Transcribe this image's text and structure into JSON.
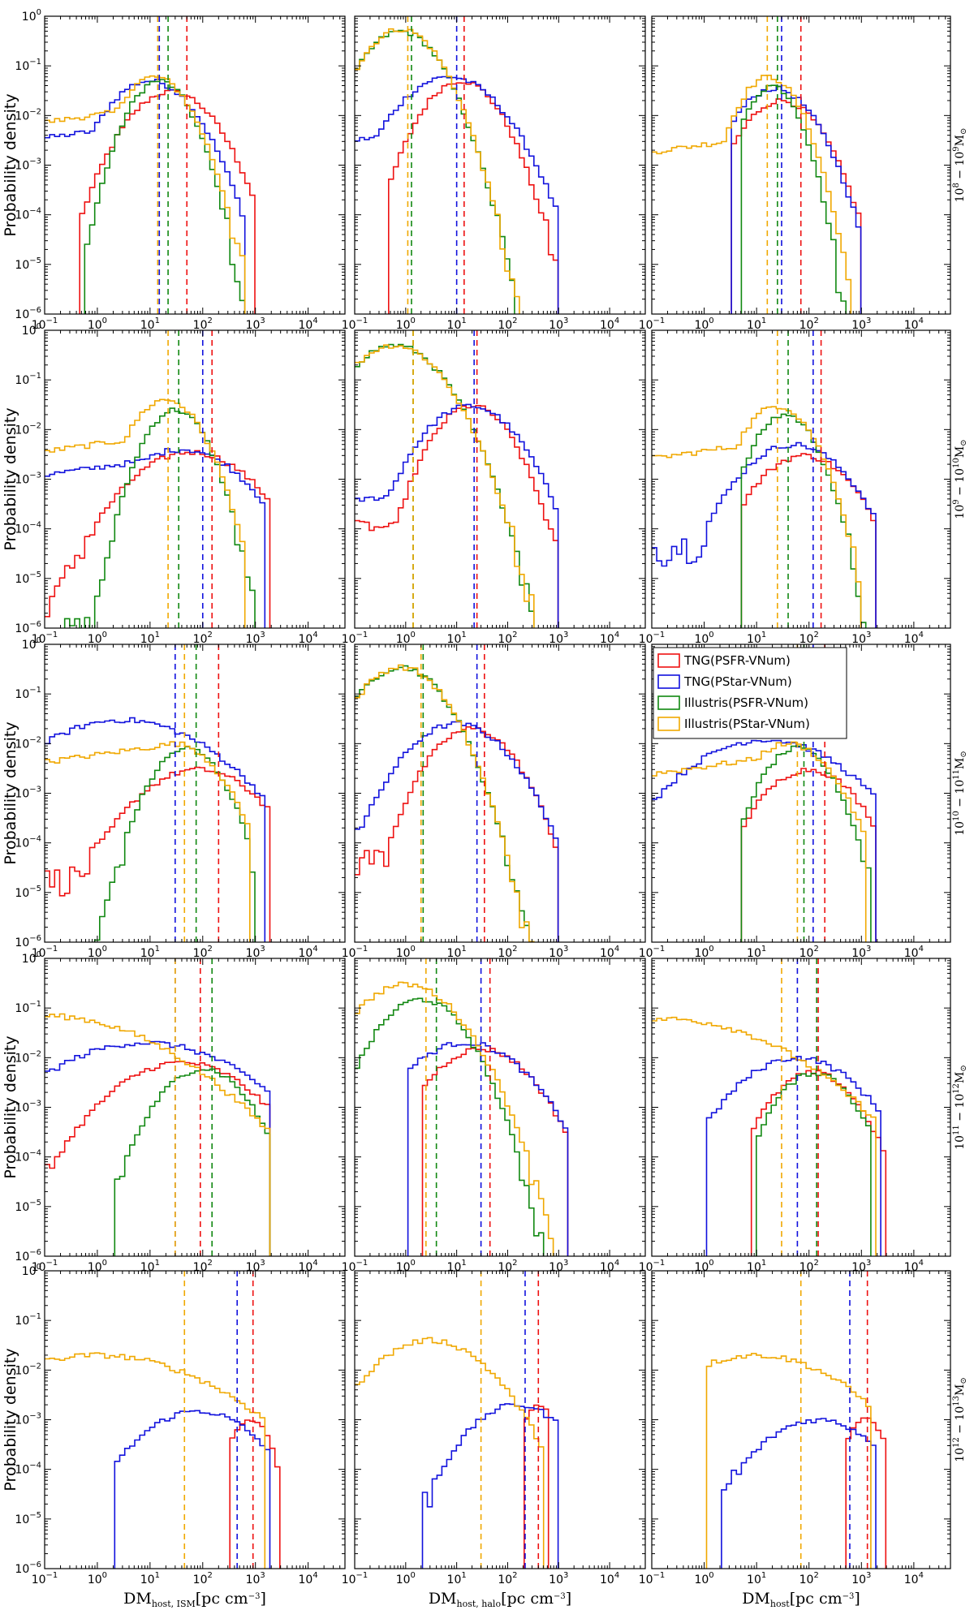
{
  "colors": {
    "TNG(PSFR-VNum)": "#ee1111",
    "TNG(PStar-VNum)": "#1111dd",
    "Illustris(PSFR-VNum)": "#118811",
    "Illustris(PStar-VNum)": "#f0a800"
  },
  "axes": {
    "ylabel": "Probability density",
    "xlabels": [
      {
        "base": "DM",
        "sub": "host, ISM",
        "unit": "[pc cm",
        "exp": "−3",
        "close": "]"
      },
      {
        "base": "DM",
        "sub": "host, halo",
        "unit": "[pc cm",
        "exp": "−3",
        "close": "]"
      },
      {
        "base": "DM",
        "sub": "host",
        "unit": "[pc cm",
        "exp": "−3",
        "close": "]"
      }
    ],
    "xticks": [
      {
        "base": "10",
        "exp": "−1"
      },
      {
        "base": "10",
        "exp": "0"
      },
      {
        "base": "10",
        "exp": "1"
      },
      {
        "base": "10",
        "exp": "2"
      },
      {
        "base": "10",
        "exp": "3"
      },
      {
        "base": "10",
        "exp": "4"
      }
    ],
    "yticks": [
      {
        "base": "10",
        "exp": "0"
      },
      {
        "base": "10",
        "exp": "−1"
      },
      {
        "base": "10",
        "exp": "−2"
      },
      {
        "base": "10",
        "exp": "−3"
      },
      {
        "base": "10",
        "exp": "−4"
      },
      {
        "base": "10",
        "exp": "−5"
      },
      {
        "base": "10",
        "exp": "−6"
      }
    ]
  },
  "rows": [
    {
      "lo": "8",
      "hi": "9",
      "msun": "M",
      "sun": "⊙"
    },
    {
      "lo": "9",
      "hi": "10",
      "msun": "M",
      "sun": "⊙"
    },
    {
      "lo": "10",
      "hi": "11",
      "msun": "M",
      "sun": "⊙"
    },
    {
      "lo": "11",
      "hi": "12",
      "msun": "M",
      "sun": "⊙"
    },
    {
      "lo": "12",
      "hi": "13",
      "msun": "M",
      "sun": "⊙"
    }
  ],
  "chart_data": {
    "type": "histogram-grid",
    "xscale": "log",
    "yscale": "log",
    "xlim": [
      0.1,
      50000
    ],
    "ylim": [
      1e-06,
      1
    ],
    "legend": {
      "entries": [
        "TNG(PSFR-VNum)",
        "TNG(PStar-VNum)",
        "Illustris(PSFR-VNum)",
        "Illustris(PStar-VNum)"
      ],
      "location": "row 3, right column, top-left"
    },
    "legend_panel": [
      2,
      2
    ],
    "panels": [
      [
        {
          "col": "ISM",
          "curves": [
            {
              "series": "TNG(PSFR-VNum)",
              "peak": 25,
              "logw": 0.5,
              "amp": 0.03,
              "lo": 0.5,
              "hi": 1000,
              "floor": 5e-06,
              "median": 50
            },
            {
              "series": "TNG(PStar-VNum)",
              "peak": 10,
              "logw": 0.5,
              "amp": 0.05,
              "lo": 0.1,
              "hi": 700,
              "floor": 0.007,
              "median": 15
            },
            {
              "series": "Illustris(PSFR-VNum)",
              "peak": 15,
              "logw": 0.35,
              "amp": 0.05,
              "lo": 0.6,
              "hi": 600,
              "floor": 5e-06,
              "median": 22
            },
            {
              "series": "Illustris(PStar-VNum)",
              "peak": 12,
              "logw": 0.4,
              "amp": 0.06,
              "lo": 0.1,
              "hi": 600,
              "floor": 0.015,
              "median": 14
            }
          ]
        },
        {
          "col": "halo",
          "curves": [
            {
              "series": "TNG(PSFR-VNum)",
              "peak": 12,
              "logw": 0.45,
              "amp": 0.05,
              "lo": 0.5,
              "hi": 1000,
              "floor": 1e-06,
              "median": 14
            },
            {
              "series": "TNG(PStar-VNum)",
              "peak": 7,
              "logw": 0.6,
              "amp": 0.06,
              "lo": 0.1,
              "hi": 1000,
              "floor": 0.006,
              "median": 10
            },
            {
              "series": "Illustris(PSFR-VNum)",
              "peak": 0.8,
              "logw": 0.45,
              "amp": 0.5,
              "lo": 0.1,
              "hi": 600,
              "floor": 1e-05,
              "median": 1.3
            },
            {
              "series": "Illustris(PStar-VNum)",
              "peak": 0.8,
              "logw": 0.45,
              "amp": 0.55,
              "lo": 0.1,
              "hi": 500,
              "floor": 1e-05,
              "median": 1.1
            }
          ]
        },
        {
          "col": "total",
          "curves": [
            {
              "series": "TNG(PSFR-VNum)",
              "peak": 30,
              "logw": 0.45,
              "amp": 0.02,
              "lo": 3,
              "hi": 1000,
              "floor": 3e-06,
              "median": 70
            },
            {
              "series": "TNG(PStar-VNum)",
              "peak": 22,
              "logw": 0.45,
              "amp": 0.035,
              "lo": 3,
              "hi": 1000,
              "floor": 3e-06,
              "median": 30
            },
            {
              "series": "Illustris(PSFR-VNum)",
              "peak": 20,
              "logw": 0.3,
              "amp": 0.04,
              "lo": 5,
              "hi": 600,
              "floor": 3e-06,
              "median": 25
            },
            {
              "series": "Illustris(PStar-VNum)",
              "peak": 17,
              "logw": 0.35,
              "amp": 0.06,
              "lo": 0.1,
              "hi": 600,
              "floor": 0.004,
              "median": 16
            }
          ]
        }
      ],
      [
        {
          "col": "ISM",
          "curves": [
            {
              "series": "TNG(PSFR-VNum)",
              "peak": 60,
              "logw": 0.7,
              "amp": 0.0035,
              "lo": 0.1,
              "hi": 2000,
              "floor": 1e-05,
              "median": 150
            },
            {
              "series": "TNG(PStar-VNum)",
              "peak": 40,
              "logw": 0.7,
              "amp": 0.004,
              "lo": 0.1,
              "hi": 1500,
              "floor": 0.003,
              "median": 100
            },
            {
              "series": "Illustris(PSFR-VNum)",
              "peak": 30,
              "logw": 0.35,
              "amp": 0.025,
              "lo": 0.2,
              "hi": 1000,
              "floor": 2e-06,
              "median": 35
            },
            {
              "series": "Illustris(PStar-VNum)",
              "peak": 20,
              "logw": 0.4,
              "amp": 0.04,
              "lo": 0.1,
              "hi": 700,
              "floor": 0.008,
              "median": 22
            }
          ]
        },
        {
          "col": "halo",
          "curves": [
            {
              "series": "TNG(PSFR-VNum)",
              "peak": 20,
              "logw": 0.45,
              "amp": 0.03,
              "lo": 0.1,
              "hi": 1000,
              "floor": 0.0002,
              "median": 25
            },
            {
              "series": "TNG(PStar-VNum)",
              "peak": 18,
              "logw": 0.55,
              "amp": 0.03,
              "lo": 0.1,
              "hi": 1000,
              "floor": 0.0008,
              "median": 22
            },
            {
              "series": "Illustris(PSFR-VNum)",
              "peak": 0.6,
              "logw": 0.55,
              "amp": 0.5,
              "lo": 0.1,
              "hi": 700,
              "floor": 1e-05,
              "median": 1.4
            },
            {
              "series": "Illustris(PStar-VNum)",
              "peak": 0.6,
              "logw": 0.55,
              "amp": 0.5,
              "lo": 0.1,
              "hi": 700,
              "floor": 1e-05,
              "median": 1.4
            }
          ]
        },
        {
          "col": "total",
          "curves": [
            {
              "series": "TNG(PSFR-VNum)",
              "peak": 80,
              "logw": 0.55,
              "amp": 0.003,
              "lo": 5,
              "hi": 2000,
              "floor": 1e-05,
              "median": 170
            },
            {
              "series": "TNG(PStar-VNum)",
              "peak": 50,
              "logw": 0.6,
              "amp": 0.005,
              "lo": 0.1,
              "hi": 2000,
              "floor": 0.0001,
              "median": 120
            },
            {
              "series": "Illustris(PSFR-VNum)",
              "peak": 35,
              "logw": 0.35,
              "amp": 0.02,
              "lo": 5,
              "hi": 1500,
              "floor": 2e-06,
              "median": 40
            },
            {
              "series": "Illustris(PStar-VNum)",
              "peak": 25,
              "logw": 0.4,
              "amp": 0.03,
              "lo": 0.1,
              "hi": 1000,
              "floor": 0.006,
              "median": 25
            }
          ]
        }
      ],
      [
        {
          "col": "ISM",
          "curves": [
            {
              "series": "TNG(PSFR-VNum)",
              "peak": 80,
              "logw": 0.7,
              "amp": 0.003,
              "lo": 0.1,
              "hi": 2000,
              "floor": 5e-05,
              "median": 200
            },
            {
              "series": "TNG(PStar-VNum)",
              "peak": 3,
              "logw": 1.0,
              "amp": 0.03,
              "lo": 0.1,
              "hi": 1500,
              "floor": 0.01,
              "median": 30
            },
            {
              "series": "Illustris(PSFR-VNum)",
              "peak": 50,
              "logw": 0.4,
              "amp": 0.008,
              "lo": 0.1,
              "hi": 1000,
              "floor": 1e-06,
              "median": 75
            },
            {
              "series": "Illustris(PStar-VNum)",
              "peak": 30,
              "logw": 0.5,
              "amp": 0.01,
              "lo": 0.1,
              "hi": 800,
              "floor": 0.01,
              "median": 45
            }
          ]
        },
        {
          "col": "halo",
          "curves": [
            {
              "series": "TNG(PSFR-VNum)",
              "peak": 20,
              "logw": 0.5,
              "amp": 0.02,
              "lo": 0.1,
              "hi": 1000,
              "floor": 0.0001,
              "median": 35
            },
            {
              "series": "TNG(PStar-VNum)",
              "peak": 10,
              "logw": 0.6,
              "amp": 0.025,
              "lo": 0.1,
              "hi": 1000,
              "floor": 0.0004,
              "median": 25
            },
            {
              "series": "Illustris(PSFR-VNum)",
              "peak": 0.8,
              "logw": 0.5,
              "amp": 0.35,
              "lo": 0.1,
              "hi": 700,
              "floor": 1e-05,
              "median": 2.2
            },
            {
              "series": "Illustris(PStar-VNum)",
              "peak": 0.8,
              "logw": 0.5,
              "amp": 0.35,
              "lo": 0.1,
              "hi": 700,
              "floor": 1e-05,
              "median": 2.0
            }
          ]
        },
        {
          "col": "total",
          "curves": [
            {
              "series": "TNG(PSFR-VNum)",
              "peak": 100,
              "logw": 0.55,
              "amp": 0.003,
              "lo": 5,
              "hi": 2000,
              "floor": 1e-05,
              "median": 200
            },
            {
              "series": "TNG(PStar-VNum)",
              "peak": 15,
              "logw": 0.9,
              "amp": 0.012,
              "lo": 0.1,
              "hi": 2000,
              "floor": 0.0002,
              "median": 120
            },
            {
              "series": "Illustris(PSFR-VNum)",
              "peak": 60,
              "logw": 0.4,
              "amp": 0.008,
              "lo": 5,
              "hi": 1500,
              "floor": 2e-06,
              "median": 80
            },
            {
              "series": "Illustris(PStar-VNum)",
              "peak": 40,
              "logw": 0.5,
              "amp": 0.01,
              "lo": 0.1,
              "hi": 1200,
              "floor": 0.006,
              "median": 60
            }
          ]
        }
      ],
      [
        {
          "col": "ISM",
          "curves": [
            {
              "series": "TNG(PSFR-VNum)",
              "peak": 40,
              "logw": 0.8,
              "amp": 0.008,
              "lo": 0.1,
              "hi": 2000,
              "floor": 5e-05,
              "median": 90
            },
            {
              "series": "TNG(PStar-VNum)",
              "peak": 8,
              "logw": 1.1,
              "amp": 0.02,
              "lo": 0.1,
              "hi": 2000,
              "floor": 0.01,
              "median": 30
            },
            {
              "series": "Illustris(PSFR-VNum)",
              "peak": 100,
              "logw": 0.5,
              "amp": 0.006,
              "lo": 2,
              "hi": 2000,
              "floor": 1e-06,
              "median": 150
            },
            {
              "series": "Illustris(PStar-VNum)",
              "peak": 0.1,
              "logw": 1.3,
              "amp": 0.07,
              "lo": 0.1,
              "hi": 2000,
              "floor": 1e-05,
              "median": 30
            }
          ]
        },
        {
          "col": "halo",
          "curves": [
            {
              "series": "TNG(PSFR-VNum)",
              "peak": 30,
              "logw": 0.6,
              "amp": 0.015,
              "lo": 2,
              "hi": 1500,
              "floor": 1e-06,
              "median": 45
            },
            {
              "series": "TNG(PStar-VNum)",
              "peak": 15,
              "logw": 0.7,
              "amp": 0.02,
              "lo": 1,
              "hi": 1500,
              "floor": 1e-06,
              "median": 30
            },
            {
              "series": "Illustris(PSFR-VNum)",
              "peak": 2,
              "logw": 0.5,
              "amp": 0.15,
              "lo": 0.1,
              "hi": 800,
              "floor": 1e-06,
              "median": 4
            },
            {
              "series": "Illustris(PStar-VNum)",
              "peak": 1,
              "logw": 0.6,
              "amp": 0.3,
              "lo": 0.1,
              "hi": 800,
              "floor": 0.0001,
              "median": 2.5
            }
          ]
        },
        {
          "col": "total",
          "curves": [
            {
              "series": "TNG(PSFR-VNum)",
              "peak": 120,
              "logw": 0.5,
              "amp": 0.005,
              "lo": 8,
              "hi": 3000,
              "floor": 1e-05,
              "median": 150
            },
            {
              "series": "TNG(PStar-VNum)",
              "peak": 60,
              "logw": 0.7,
              "amp": 0.01,
              "lo": 1,
              "hi": 2500,
              "floor": 0.0001,
              "median": 60
            },
            {
              "series": "Illustris(PSFR-VNum)",
              "peak": 130,
              "logw": 0.45,
              "amp": 0.005,
              "lo": 10,
              "hi": 1500,
              "floor": 1e-06,
              "median": 140
            },
            {
              "series": "Illustris(PStar-VNum)",
              "peak": 0.2,
              "logw": 1.3,
              "amp": 0.06,
              "lo": 0.1,
              "hi": 2000,
              "floor": 1e-05,
              "median": 30
            }
          ]
        }
      ],
      [
        {
          "col": "ISM",
          "curves": [
            {
              "series": "TNG(PSFR-VNum)",
              "peak": 800,
              "logw": 0.25,
              "amp": 0.001,
              "lo": 300,
              "hi": 3000,
              "floor": 1e-06,
              "median": 900
            },
            {
              "series": "TNG(PStar-VNum)",
              "peak": 80,
              "logw": 0.7,
              "amp": 0.0015,
              "lo": 2,
              "hi": 2000,
              "floor": 5e-05,
              "median": 450
            },
            {
              "series": "Illustris(PSFR-VNum)",
              "peak": 1,
              "logw": 0.1,
              "amp": 0,
              "lo": 1,
              "hi": 1,
              "floor": 0,
              "median": 0
            },
            {
              "series": "Illustris(PStar-VNum)",
              "peak": 1,
              "logw": 1.3,
              "amp": 0.02,
              "lo": 0.1,
              "hi": 1500,
              "floor": 0.0001,
              "median": 45
            }
          ]
        },
        {
          "col": "halo",
          "curves": [
            {
              "series": "TNG(PSFR-VNum)",
              "peak": 400,
              "logw": 0.2,
              "amp": 0.002,
              "lo": 200,
              "hi": 700,
              "floor": 1e-06,
              "median": 400
            },
            {
              "series": "TNG(PStar-VNum)",
              "peak": 150,
              "logw": 0.6,
              "amp": 0.002,
              "lo": 2,
              "hi": 1000,
              "floor": 5e-05,
              "median": 220
            },
            {
              "series": "Illustris(PSFR-VNum)",
              "peak": 1,
              "logw": 0.1,
              "amp": 0,
              "lo": 1,
              "hi": 1,
              "floor": 0,
              "median": 0
            },
            {
              "series": "Illustris(PStar-VNum)",
              "peak": 3,
              "logw": 0.7,
              "amp": 0.04,
              "lo": 0.1,
              "hi": 500,
              "floor": 1e-06,
              "median": 30
            }
          ]
        },
        {
          "col": "total",
          "curves": [
            {
              "series": "TNG(PSFR-VNum)",
              "peak": 1200,
              "logw": 0.25,
              "amp": 0.001,
              "lo": 500,
              "hi": 3000,
              "floor": 1e-06,
              "median": 1300
            },
            {
              "series": "TNG(PStar-VNum)",
              "peak": 150,
              "logw": 0.7,
              "amp": 0.001,
              "lo": 2,
              "hi": 2000,
              "floor": 3e-05,
              "median": 600
            },
            {
              "series": "Illustris(PSFR-VNum)",
              "peak": 1,
              "logw": 0.1,
              "amp": 0,
              "lo": 1,
              "hi": 1,
              "floor": 0,
              "median": 0
            },
            {
              "series": "Illustris(PStar-VNum)",
              "peak": 10,
              "logw": 1.0,
              "amp": 0.02,
              "lo": 1,
              "hi": 1500,
              "floor": 0.0001,
              "median": 70
            }
          ]
        }
      ]
    ]
  }
}
